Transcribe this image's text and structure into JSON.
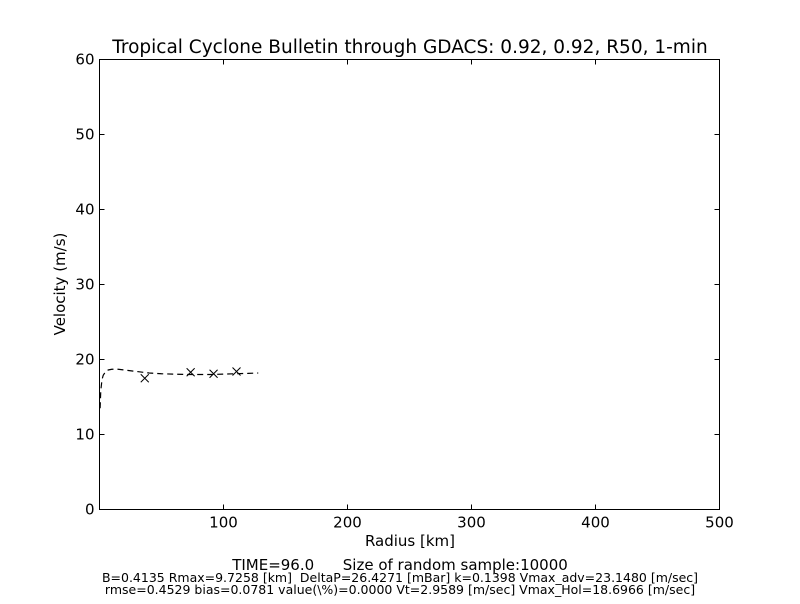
{
  "chart_data": {
    "type": "line",
    "title": "Tropical Cyclone Bulletin through GDACS: 0.92, 0.92, R50, 1-min",
    "xlabel": "Radius [km]",
    "ylabel": "Velocity (m/s)",
    "xlim": [
      0,
      500
    ],
    "ylim": [
      0,
      60
    ],
    "xticks": [
      100,
      200,
      300,
      400,
      500
    ],
    "yticks": [
      0,
      10,
      20,
      30,
      40,
      50,
      60
    ],
    "grid": false,
    "legend": "none",
    "series": [
      {
        "style": "dashed-line",
        "color": "#000000",
        "x": [
          0.5,
          1,
          2,
          3,
          5,
          7,
          10,
          15,
          20,
          30,
          40,
          50,
          60,
          70,
          80,
          90,
          100,
          110,
          120,
          128
        ],
        "y": [
          13.5,
          15.8,
          17.3,
          17.9,
          18.4,
          18.6,
          18.7,
          18.7,
          18.6,
          18.4,
          18.2,
          18.1,
          18.05,
          18.0,
          18.0,
          18.0,
          18.05,
          18.1,
          18.15,
          18.2
        ]
      },
      {
        "style": "x-markers",
        "color": "#000000",
        "x": [
          36.5,
          73.5,
          92,
          110.5
        ],
        "y": [
          17.5,
          18.3,
          18.1,
          18.4
        ]
      }
    ]
  },
  "footer": {
    "line1": "TIME=96.0      Size of random sample:10000",
    "line2": "B=0.4135 Rmax=9.7258 [km]  DeltaP=26.4271 [mBar] k=0.1398 Vmax_adv=23.1480 [m/sec]",
    "line3": "rmse=0.4529 bias=0.0781 value(\\%)=0.0000 Vt=2.9589 [m/sec] Vmax_Hol=18.6966 [m/sec]"
  }
}
